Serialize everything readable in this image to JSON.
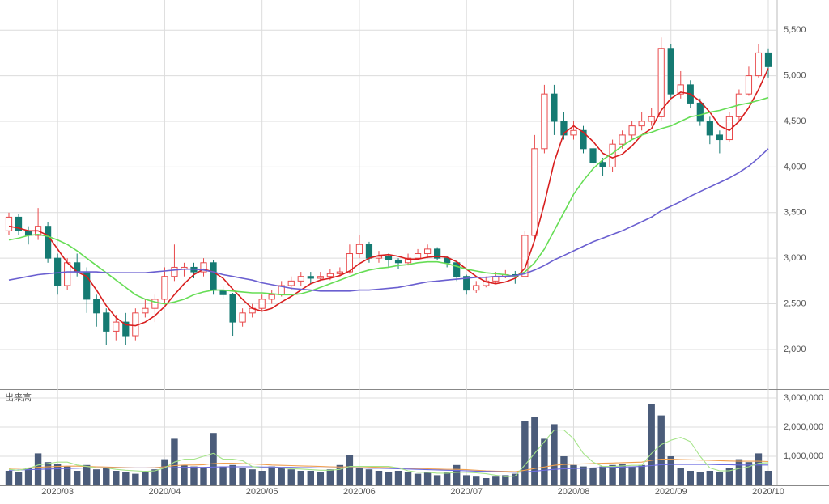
{
  "chart_data": {
    "type": "candlestick",
    "up_color": "#e8484a",
    "down_color": "#157a72",
    "ylim": [
      1565,
      5830
    ],
    "yticks": [
      {
        "value": 2000,
        "label": "2,000"
      },
      {
        "value": 2500,
        "label": "2,500"
      },
      {
        "value": 3000,
        "label": "3,000"
      },
      {
        "value": 3500,
        "label": "3,500"
      },
      {
        "value": 4000,
        "label": "4,000"
      },
      {
        "value": 4500,
        "label": "4,500"
      },
      {
        "value": 5000,
        "label": "5,000"
      },
      {
        "value": 5500,
        "label": "5,500"
      }
    ],
    "grid": true,
    "categories": [
      null,
      null,
      null,
      null,
      null,
      "2020/03",
      null,
      null,
      null,
      null,
      null,
      null,
      null,
      null,
      null,
      null,
      "2020/04",
      null,
      null,
      null,
      null,
      null,
      null,
      null,
      null,
      null,
      "2020/05",
      null,
      null,
      null,
      null,
      null,
      null,
      null,
      null,
      null,
      "2020/06",
      null,
      null,
      null,
      null,
      null,
      null,
      null,
      null,
      null,
      null,
      "2020/07",
      null,
      null,
      null,
      null,
      null,
      null,
      null,
      null,
      null,
      null,
      "2020/08",
      null,
      null,
      null,
      null,
      null,
      null,
      null,
      null,
      null,
      "2020/09",
      null,
      null,
      null,
      null,
      null,
      null,
      null,
      null,
      null,
      "2020/10"
    ],
    "ohlc": [
      [
        3300,
        3500,
        3250,
        3450
      ],
      [
        3450,
        3480,
        3250,
        3300
      ],
      [
        3300,
        3350,
        3150,
        3250
      ],
      [
        3250,
        3550,
        3200,
        3350
      ],
      [
        3350,
        3400,
        2950,
        3000
      ],
      [
        3000,
        3050,
        2600,
        2700
      ],
      [
        2700,
        3000,
        2650,
        2950
      ],
      [
        2950,
        3050,
        2800,
        2850
      ],
      [
        2850,
        2900,
        2400,
        2550
      ],
      [
        2550,
        2600,
        2250,
        2400
      ],
      [
        2400,
        2450,
        2050,
        2200
      ],
      [
        2200,
        2380,
        2100,
        2300
      ],
      [
        2300,
        2400,
        2050,
        2150
      ],
      [
        2150,
        2450,
        2100,
        2400
      ],
      [
        2400,
        2550,
        2350,
        2450
      ],
      [
        2450,
        2600,
        2300,
        2550
      ],
      [
        2550,
        2900,
        2500,
        2800
      ],
      [
        2800,
        3150,
        2750,
        2900
      ],
      [
        2880,
        2950,
        2800,
        2900
      ],
      [
        2900,
        2950,
        2780,
        2850
      ],
      [
        2850,
        3000,
        2800,
        2950
      ],
      [
        2950,
        2980,
        2600,
        2650
      ],
      [
        2650,
        2700,
        2550,
        2600
      ],
      [
        2600,
        2620,
        2150,
        2300
      ],
      [
        2300,
        2450,
        2250,
        2400
      ],
      [
        2400,
        2500,
        2350,
        2450
      ],
      [
        2450,
        2600,
        2420,
        2550
      ],
      [
        2550,
        2650,
        2500,
        2600
      ],
      [
        2600,
        2750,
        2580,
        2700
      ],
      [
        2700,
        2800,
        2650,
        2750
      ],
      [
        2750,
        2850,
        2700,
        2800
      ],
      [
        2800,
        2850,
        2720,
        2780
      ],
      [
        2780,
        2850,
        2750,
        2800
      ],
      [
        2800,
        2880,
        2760,
        2830
      ],
      [
        2830,
        2900,
        2800,
        2850
      ],
      [
        2850,
        3150,
        2830,
        3050
      ],
      [
        3050,
        3250,
        3000,
        3150
      ],
      [
        3150,
        3180,
        2950,
        3000
      ],
      [
        3000,
        3080,
        2950,
        3020
      ],
      [
        3020,
        3050,
        2900,
        2980
      ],
      [
        2980,
        3000,
        2880,
        2950
      ],
      [
        2950,
        3050,
        2920,
        3000
      ],
      [
        3000,
        3100,
        2980,
        3050
      ],
      [
        3050,
        3150,
        3000,
        3100
      ],
      [
        3100,
        3120,
        2980,
        3000
      ],
      [
        3000,
        3020,
        2900,
        2950
      ],
      [
        2950,
        2980,
        2750,
        2800
      ],
      [
        2800,
        2820,
        2600,
        2650
      ],
      [
        2650,
        2750,
        2620,
        2700
      ],
      [
        2700,
        2800,
        2680,
        2750
      ],
      [
        2750,
        2850,
        2720,
        2800
      ],
      [
        2800,
        2870,
        2780,
        2820
      ],
      [
        2820,
        2860,
        2720,
        2800
      ],
      [
        2800,
        3300,
        2800,
        3250
      ],
      [
        3250,
        4350,
        3200,
        4200
      ],
      [
        4200,
        4900,
        4150,
        4800
      ],
      [
        4800,
        4900,
        4350,
        4500
      ],
      [
        4500,
        4600,
        4300,
        4350
      ],
      [
        4350,
        4500,
        4300,
        4400
      ],
      [
        4400,
        4450,
        4150,
        4200
      ],
      [
        4200,
        4250,
        3950,
        4050
      ],
      [
        4050,
        4100,
        3900,
        4000
      ],
      [
        4000,
        4300,
        3950,
        4250
      ],
      [
        4250,
        4400,
        4200,
        4350
      ],
      [
        4350,
        4500,
        4300,
        4450
      ],
      [
        4450,
        4600,
        4400,
        4500
      ],
      [
        4500,
        4650,
        4450,
        4550
      ],
      [
        4550,
        5420,
        4500,
        5300
      ],
      [
        5300,
        5350,
        4750,
        4800
      ],
      [
        4800,
        5050,
        4750,
        4900
      ],
      [
        4900,
        4950,
        4650,
        4700
      ],
      [
        4700,
        4750,
        4450,
        4500
      ],
      [
        4500,
        4550,
        4250,
        4350
      ],
      [
        4350,
        4400,
        4150,
        4300
      ],
      [
        4300,
        4600,
        4280,
        4550
      ],
      [
        4550,
        4850,
        4500,
        4800
      ],
      [
        4800,
        5100,
        4780,
        5000
      ],
      [
        5000,
        5350,
        4980,
        5250
      ],
      [
        5250,
        5300,
        4980,
        5100
      ]
    ],
    "series": [
      {
        "color": "#d81e1e",
        "values": [
          3350,
          3330,
          3300,
          3300,
          3250,
          3100,
          2950,
          2850,
          2800,
          2650,
          2480,
          2350,
          2270,
          2260,
          2300,
          2370,
          2470,
          2600,
          2720,
          2820,
          2880,
          2850,
          2780,
          2660,
          2550,
          2450,
          2420,
          2450,
          2520,
          2580,
          2650,
          2720,
          2760,
          2780,
          2810,
          2860,
          2940,
          3000,
          3030,
          3040,
          3020,
          2990,
          2990,
          3010,
          3020,
          3010,
          2960,
          2880,
          2800,
          2740,
          2720,
          2740,
          2780,
          2890,
          3200,
          3600,
          4050,
          4370,
          4450,
          4380,
          4280,
          4150,
          4100,
          4140,
          4230,
          4350,
          4420,
          4620,
          4750,
          4820,
          4800,
          4720,
          4600,
          4450,
          4400,
          4500,
          4650,
          4850,
          5080
        ]
      },
      {
        "color": "#66dd55",
        "values": [
          3200,
          3220,
          3250,
          3260,
          3240,
          3200,
          3150,
          3080,
          3000,
          2920,
          2840,
          2760,
          2680,
          2600,
          2550,
          2520,
          2500,
          2520,
          2550,
          2600,
          2630,
          2650,
          2650,
          2640,
          2630,
          2620,
          2620,
          2610,
          2600,
          2600,
          2610,
          2640,
          2680,
          2720,
          2760,
          2800,
          2840,
          2870,
          2890,
          2900,
          2920,
          2930,
          2950,
          2960,
          2960,
          2940,
          2910,
          2880,
          2860,
          2840,
          2830,
          2820,
          2800,
          2850,
          2950,
          3100,
          3300,
          3500,
          3700,
          3850,
          3980,
          4080,
          4150,
          4230,
          4300,
          4350,
          4380,
          4420,
          4450,
          4500,
          4550,
          4570,
          4600,
          4620,
          4650,
          4680,
          4700,
          4730,
          4760
        ]
      },
      {
        "color": "#6a5fd0",
        "values": [
          2760,
          2780,
          2800,
          2820,
          2830,
          2840,
          2850,
          2850,
          2850,
          2850,
          2840,
          2840,
          2840,
          2840,
          2840,
          2850,
          2860,
          2870,
          2880,
          2880,
          2870,
          2850,
          2820,
          2800,
          2780,
          2760,
          2730,
          2710,
          2690,
          2670,
          2660,
          2650,
          2640,
          2640,
          2640,
          2640,
          2650,
          2650,
          2660,
          2670,
          2680,
          2700,
          2720,
          2740,
          2750,
          2760,
          2770,
          2780,
          2790,
          2790,
          2800,
          2800,
          2810,
          2830,
          2870,
          2920,
          2980,
          3030,
          3080,
          3130,
          3180,
          3220,
          3260,
          3300,
          3350,
          3400,
          3450,
          3520,
          3570,
          3620,
          3680,
          3730,
          3780,
          3830,
          3880,
          3940,
          4010,
          4100,
          4200
        ]
      }
    ],
    "volume": {
      "label": "出来高",
      "color": "#4b5c7a",
      "ylim": [
        0,
        3250000
      ],
      "yticks": [
        {
          "value": 1000000,
          "label": "1,000,000"
        },
        {
          "value": 2000000,
          "label": "2,000,000"
        },
        {
          "value": 3000000,
          "label": "3,000,000"
        }
      ],
      "values": [
        500000,
        450000,
        600000,
        1100000,
        800000,
        750000,
        650000,
        500000,
        700000,
        550000,
        600000,
        500000,
        450000,
        400000,
        500000,
        550000,
        900000,
        1600000,
        700000,
        650000,
        600000,
        1800000,
        650000,
        700000,
        600000,
        550000,
        500000,
        650000,
        600000,
        550000,
        500000,
        500000,
        450000,
        550000,
        700000,
        1050000,
        600000,
        550000,
        500000,
        450000,
        500000,
        450000,
        400000,
        450000,
        350000,
        450000,
        700000,
        350000,
        300000,
        250000,
        300000,
        350000,
        400000,
        2200000,
        2350000,
        1600000,
        2100000,
        1000000,
        700000,
        650000,
        600000,
        650000,
        700000,
        750000,
        650000,
        700000,
        2800000,
        2400000,
        1000000,
        600000,
        500000,
        450000,
        500000,
        450000,
        600000,
        900000,
        800000,
        1100000,
        500000
      ],
      "series": [
        {
          "color": "#f0a050",
          "values": [
            580000,
            590000,
            600000,
            620000,
            640000,
            650000,
            660000,
            660000,
            650000,
            640000,
            630000,
            620000,
            610000,
            600000,
            600000,
            610000,
            640000,
            680000,
            700000,
            700000,
            710000,
            750000,
            760000,
            760000,
            750000,
            740000,
            720000,
            700000,
            690000,
            680000,
            670000,
            660000,
            650000,
            640000,
            630000,
            640000,
            640000,
            630000,
            620000,
            610000,
            600000,
            590000,
            580000,
            570000,
            560000,
            550000,
            550000,
            540000,
            520000,
            500000,
            490000,
            480000,
            470000,
            520000,
            580000,
            630000,
            690000,
            720000,
            730000,
            740000,
            750000,
            760000,
            770000,
            780000,
            790000,
            800000,
            860000,
            900000,
            900000,
            890000,
            880000,
            870000,
            860000,
            850000,
            840000,
            830000,
            830000,
            830000,
            820000
          ]
        },
        {
          "color": "#6a6ae0",
          "values": [
            520000,
            530000,
            540000,
            550000,
            560000,
            570000,
            580000,
            590000,
            600000,
            600000,
            600000,
            600000,
            600000,
            600000,
            600000,
            600000,
            600000,
            610000,
            620000,
            620000,
            620000,
            630000,
            640000,
            640000,
            640000,
            640000,
            630000,
            630000,
            620000,
            620000,
            610000,
            610000,
            600000,
            600000,
            600000,
            600000,
            600000,
            590000,
            590000,
            580000,
            570000,
            560000,
            550000,
            540000,
            530000,
            520000,
            510000,
            500000,
            490000,
            480000,
            470000,
            460000,
            450000,
            460000,
            490000,
            520000,
            550000,
            570000,
            580000,
            590000,
            600000,
            610000,
            620000,
            630000,
            640000,
            650000,
            680000,
            710000,
            720000,
            720000,
            720000,
            720000,
            720000,
            710000,
            710000,
            700000,
            700000,
            700000,
            700000
          ]
        },
        {
          "color": "#a6e48a",
          "values": [
            550000,
            520000,
            580000,
            700000,
            750000,
            800000,
            800000,
            700000,
            650000,
            600000,
            600000,
            550000,
            520000,
            500000,
            480000,
            500000,
            600000,
            800000,
            900000,
            900000,
            1000000,
            1100000,
            900000,
            900000,
            850000,
            650000,
            600000,
            600000,
            600000,
            570000,
            560000,
            540000,
            520000,
            520000,
            550000,
            650000,
            650000,
            650000,
            650000,
            650000,
            600000,
            500000,
            450000,
            450000,
            420000,
            420000,
            450000,
            450000,
            430000,
            400000,
            350000,
            300000,
            320000,
            700000,
            1100000,
            1500000,
            1900000,
            1900000,
            1600000,
            1100000,
            800000,
            650000,
            650000,
            670000,
            690000,
            690000,
            1100000,
            1400000,
            1550000,
            1650000,
            1500000,
            1000000,
            600000,
            500000,
            500000,
            580000,
            640000,
            760000,
            780000
          ]
        }
      ]
    }
  }
}
